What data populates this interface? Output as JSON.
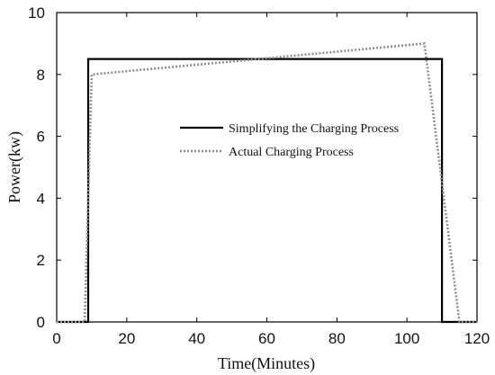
{
  "chart_data": {
    "type": "line",
    "xlabel": "Time(Minutes)",
    "ylabel": "Power(kw)",
    "xlim": [
      0,
      120
    ],
    "ylim": [
      0,
      10
    ],
    "xticks": [
      0,
      20,
      40,
      60,
      80,
      100,
      120
    ],
    "yticks": [
      0,
      2,
      4,
      6,
      8,
      10
    ],
    "grid": false,
    "legend_position": "center-right",
    "series": [
      {
        "name": "Simplifying the Charging Process",
        "style": "solid",
        "color": "#000000",
        "x": [
          0,
          9,
          9,
          110,
          110,
          120
        ],
        "y": [
          0,
          0,
          8.5,
          8.5,
          0,
          0
        ]
      },
      {
        "name": "Actual Charging Process",
        "style": "dotted",
        "color": "#8c8c8c",
        "x": [
          0,
          8,
          10,
          105,
          115,
          120
        ],
        "y": [
          0,
          0,
          8,
          9,
          0,
          0
        ]
      }
    ]
  }
}
